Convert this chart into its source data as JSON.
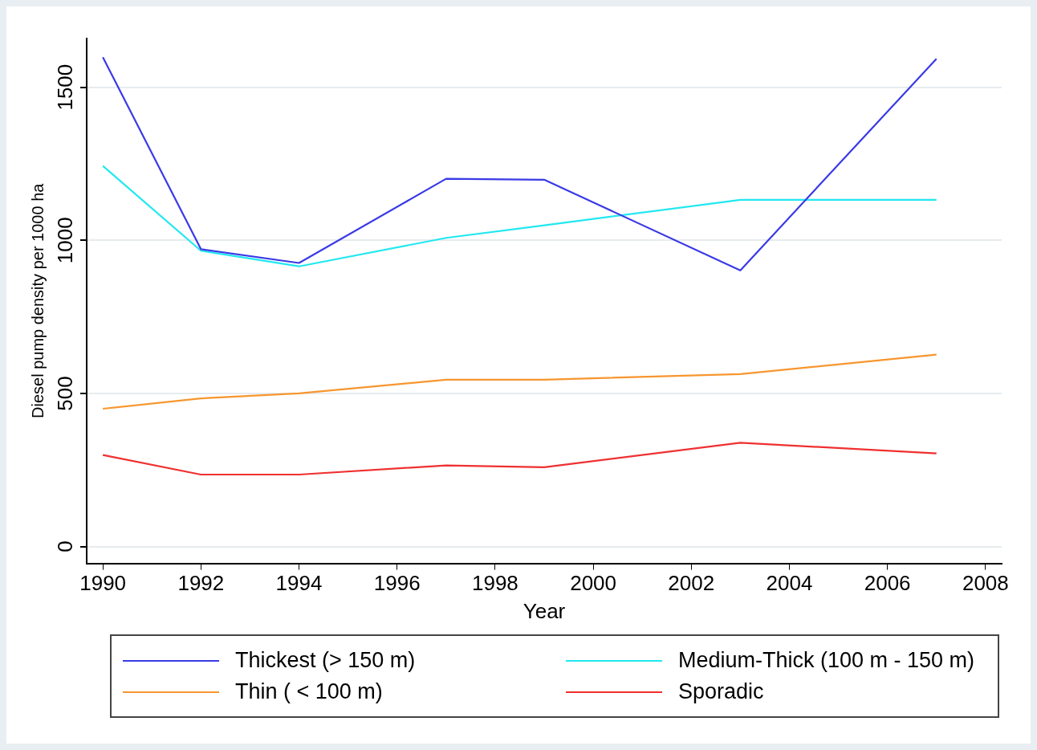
{
  "chart_data": {
    "type": "line",
    "xlabel": "Year",
    "ylabel": "Diesel pump density per 1000 ha",
    "x": [
      1990,
      1992,
      1994,
      1997,
      1999,
      2003,
      2007
    ],
    "series": [
      {
        "name": "Thickest (> 150 m)",
        "color": "#3a3ae6",
        "values": [
          1598,
          971,
          926,
          1201,
          1198,
          902,
          1593
        ]
      },
      {
        "name": "Medium-Thick (100 m  - 150 m)",
        "color": "#22e8f0",
        "values": [
          1243,
          966,
          915,
          1008,
          1049,
          1132,
          1132
        ]
      },
      {
        "name": "Thin ( < 100 m)",
        "color": "#f7962e",
        "values": [
          450,
          484,
          500,
          545,
          545,
          563,
          627
        ]
      },
      {
        "name": "Sporadic",
        "color": "#f03030",
        "values": [
          299,
          235,
          235,
          265,
          259,
          339,
          304
        ]
      }
    ],
    "xlim": [
      1989.67,
      2008.33
    ],
    "xticks": [
      1990,
      1992,
      1994,
      1996,
      1998,
      2000,
      2002,
      2004,
      2006,
      2008
    ],
    "ylim": [
      -55,
      1659
    ],
    "yticks": [
      0,
      500,
      1000,
      1500
    ],
    "grid": "y",
    "legend": "bottom",
    "marker": "none",
    "line_style": "solid"
  }
}
